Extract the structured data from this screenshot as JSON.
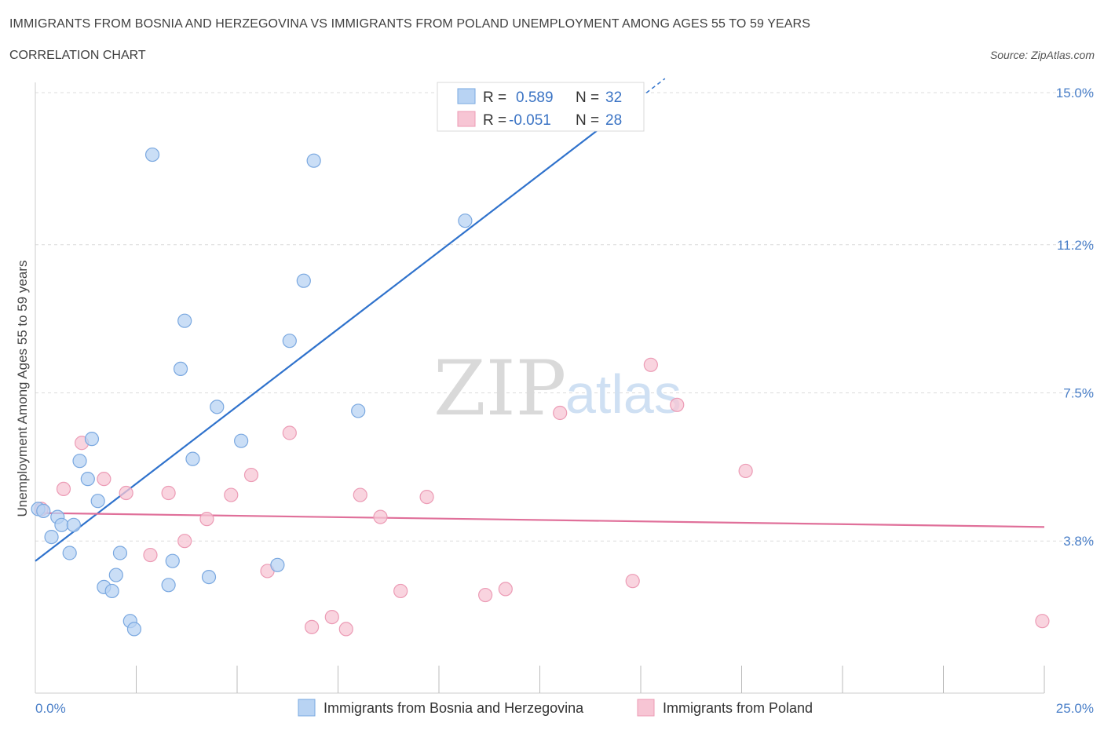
{
  "header": {
    "title": "IMMIGRANTS FROM BOSNIA AND HERZEGOVINA VS IMMIGRANTS FROM POLAND UNEMPLOYMENT AMONG AGES 55 TO 59 YEARS",
    "subtitle": "CORRELATION CHART",
    "source": "Source: ZipAtlas.com"
  },
  "watermark": {
    "zip": "ZIP",
    "atlas": "atlas"
  },
  "legend": {
    "series1": {
      "r_label": "R =",
      "r_value": "0.589",
      "n_label": "N =",
      "n_value": "32"
    },
    "series2": {
      "r_label": "R =",
      "r_value": "-0.051",
      "n_label": "N =",
      "n_value": "28"
    }
  },
  "colors": {
    "blue_fill": "#b8d3f3",
    "blue_stroke": "#7aa8e0",
    "blue_line": "#2f72cc",
    "pink_fill": "#f7c5d4",
    "pink_stroke": "#ec9bb5",
    "pink_line": "#e0709a",
    "tick_color": "#4a7fc8",
    "grid": "#dcdcdc"
  },
  "chart_data": {
    "type": "scatter",
    "title": "IMMIGRANTS FROM BOSNIA AND HERZEGOVINA VS IMMIGRANTS FROM POLAND UNEMPLOYMENT AMONG AGES 55 TO 59 YEARS",
    "xlabel": "",
    "ylabel": "Unemployment Among Ages 55 to 59 years",
    "xlim": [
      0,
      25
    ],
    "ylim": [
      0,
      15
    ],
    "x_tick_labels": [
      "0.0%",
      "25.0%"
    ],
    "y_ticks": [
      3.8,
      7.5,
      11.2,
      15.0
    ],
    "y_tick_labels": [
      "3.8%",
      "7.5%",
      "11.2%",
      "15.0%"
    ],
    "grid": true,
    "legend_position": "top-center",
    "series": [
      {
        "name": "Immigrants from Bosnia and Herzegovina",
        "color": "#b8d3f3",
        "points": [
          [
            0.07,
            4.6
          ],
          [
            0.2,
            4.55
          ],
          [
            0.4,
            3.9
          ],
          [
            0.55,
            4.4
          ],
          [
            0.65,
            4.2
          ],
          [
            0.85,
            3.5
          ],
          [
            0.95,
            4.2
          ],
          [
            1.1,
            5.8
          ],
          [
            1.3,
            5.35
          ],
          [
            1.4,
            6.35
          ],
          [
            1.55,
            4.8
          ],
          [
            1.7,
            2.65
          ],
          [
            1.9,
            2.55
          ],
          [
            2.0,
            2.95
          ],
          [
            2.1,
            3.5
          ],
          [
            2.35,
            1.8
          ],
          [
            2.45,
            1.6
          ],
          [
            2.9,
            13.45
          ],
          [
            3.3,
            2.7
          ],
          [
            3.4,
            3.3
          ],
          [
            3.6,
            8.1
          ],
          [
            3.7,
            9.3
          ],
          [
            3.9,
            5.85
          ],
          [
            4.3,
            2.9
          ],
          [
            4.5,
            7.15
          ],
          [
            5.1,
            6.3
          ],
          [
            6.0,
            3.2
          ],
          [
            6.3,
            8.8
          ],
          [
            6.65,
            10.3
          ],
          [
            6.9,
            13.3
          ],
          [
            8.0,
            7.05
          ],
          [
            10.65,
            11.8
          ]
        ]
      },
      {
        "name": "Immigrants from Poland",
        "color": "#f7c5d4",
        "points": [
          [
            0.15,
            4.6
          ],
          [
            0.7,
            5.1
          ],
          [
            1.15,
            6.25
          ],
          [
            1.7,
            5.35
          ],
          [
            2.25,
            5.0
          ],
          [
            2.85,
            3.45
          ],
          [
            3.3,
            5.0
          ],
          [
            3.7,
            3.8
          ],
          [
            4.25,
            4.35
          ],
          [
            4.85,
            4.95
          ],
          [
            5.35,
            5.45
          ],
          [
            5.75,
            3.05
          ],
          [
            6.3,
            6.5
          ],
          [
            6.85,
            1.65
          ],
          [
            7.35,
            1.9
          ],
          [
            7.7,
            1.6
          ],
          [
            8.05,
            4.95
          ],
          [
            8.55,
            4.4
          ],
          [
            9.05,
            2.55
          ],
          [
            9.7,
            4.9
          ],
          [
            11.15,
            2.45
          ],
          [
            11.65,
            2.6
          ],
          [
            13.0,
            7.0
          ],
          [
            14.8,
            2.8
          ],
          [
            15.25,
            8.2
          ],
          [
            15.9,
            7.2
          ],
          [
            17.6,
            5.55
          ],
          [
            24.95,
            1.8
          ]
        ]
      }
    ],
    "trendlines": [
      {
        "series": "Immigrants from Bosnia and Herzegovina",
        "x": [
          0,
          15.6
        ],
        "y": [
          3.3,
          15.35
        ]
      },
      {
        "series": "Immigrants from Poland",
        "x": [
          0,
          25
        ],
        "y": [
          4.5,
          4.15
        ]
      }
    ]
  },
  "bottom_legend": {
    "item1": "Immigrants from Bosnia and Herzegovina",
    "item2": "Immigrants from Poland"
  }
}
